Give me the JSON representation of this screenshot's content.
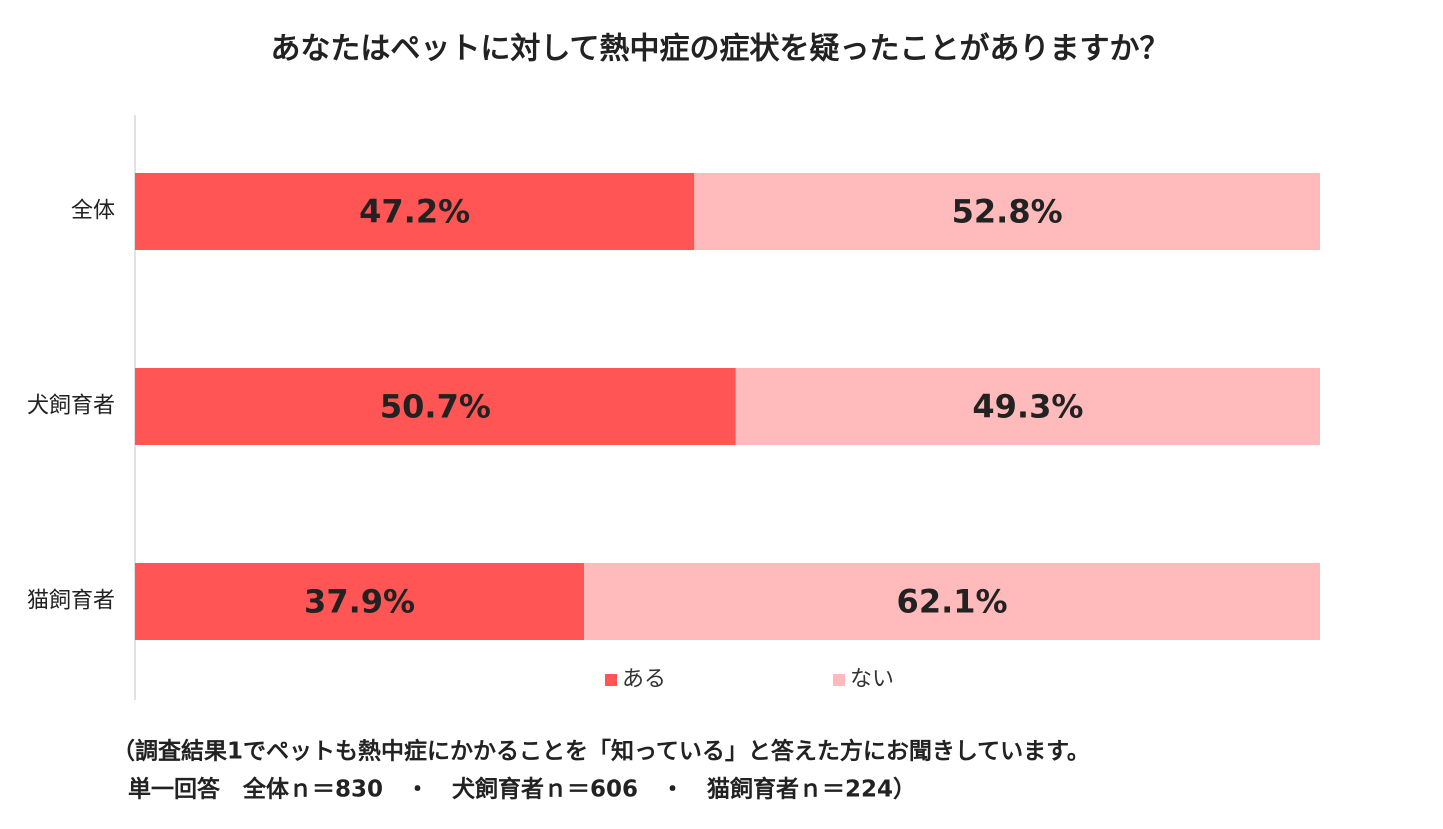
{
  "chart_data": {
    "type": "stacked-bar",
    "orientation": "horizontal",
    "title": "あなたはペットに対して熱中症の症状を疑ったことがありますか？",
    "categories": [
      "全体",
      "犬飼育者",
      "猫飼育者"
    ],
    "series": [
      {
        "name": "ある",
        "color": "#ff5555",
        "values": [
          47.2,
          50.7,
          37.9
        ],
        "value_labels": [
          "47.2%",
          "50.7%",
          "37.9%"
        ]
      },
      {
        "name": "ない",
        "color": "#ffbbbb",
        "values": [
          52.8,
          49.3,
          62.1
        ],
        "value_labels": [
          "52.8%",
          "49.3%",
          "62.1%"
        ]
      }
    ],
    "xlim": [
      0,
      100
    ],
    "legend": "bottom",
    "notes": [
      "（調査結果1でペットも熱中症にかかることを「知っている」と答えた方にお聞きしています。",
      "単一回答　全体ｎ＝830　・　犬飼育者ｎ＝606　・　猫飼育者ｎ＝224）"
    ]
  }
}
